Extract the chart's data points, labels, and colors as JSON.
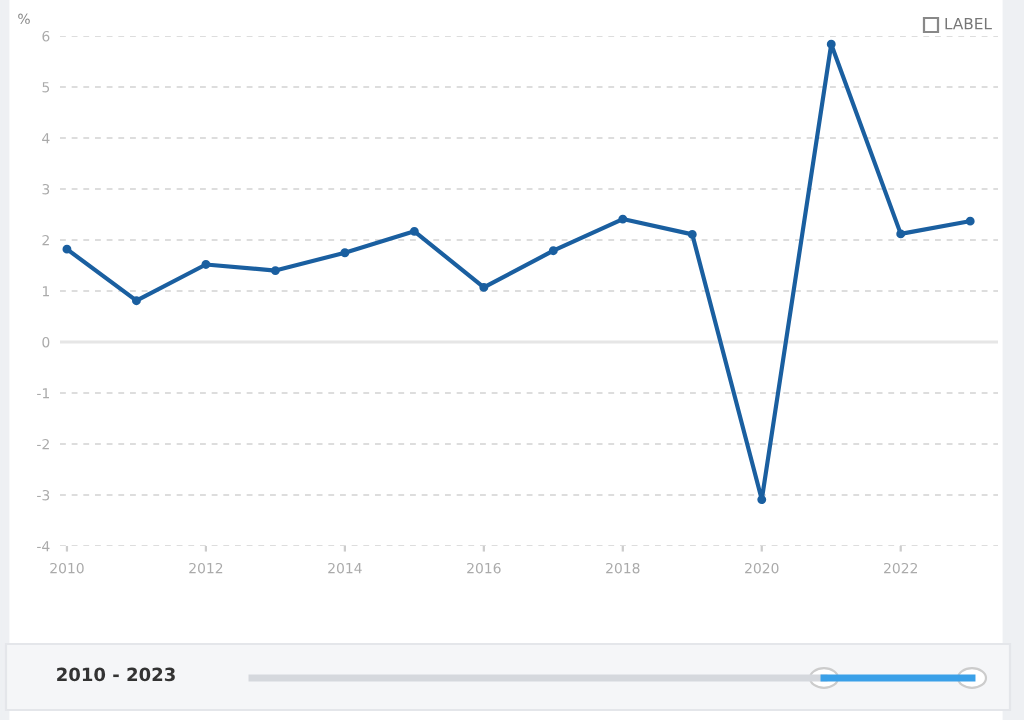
{
  "chart_data": {
    "type": "line",
    "ylabel": "%",
    "x": [
      2010,
      2011,
      2012,
      2013,
      2014,
      2015,
      2016,
      2017,
      2018,
      2019,
      2020,
      2021,
      2022,
      2023
    ],
    "series": [
      {
        "color": "#1a5fa0",
        "values": [
          1.82,
          0.81,
          1.52,
          1.4,
          1.75,
          2.17,
          1.07,
          1.79,
          2.41,
          2.11,
          -3.09,
          5.84,
          2.12,
          2.37
        ]
      }
    ],
    "xlim": [
      2009.9,
      2023.4
    ],
    "ylim": [
      -4,
      6
    ],
    "xticks": [
      2010,
      2012,
      2014,
      2016,
      2018,
      2020,
      2022
    ],
    "yticks": [
      -4,
      -3,
      -2,
      -1,
      0,
      1,
      2,
      3,
      4,
      5,
      6
    ],
    "grid": "y",
    "marker": "circle",
    "line_style": "solid",
    "ref_lines": [
      {
        "axis": "y",
        "value": 0,
        "color": "#e6e6e6",
        "line_style": "solid"
      }
    ],
    "annotations": [
      "LABEL",
      "2010 - 2023"
    ]
  }
}
